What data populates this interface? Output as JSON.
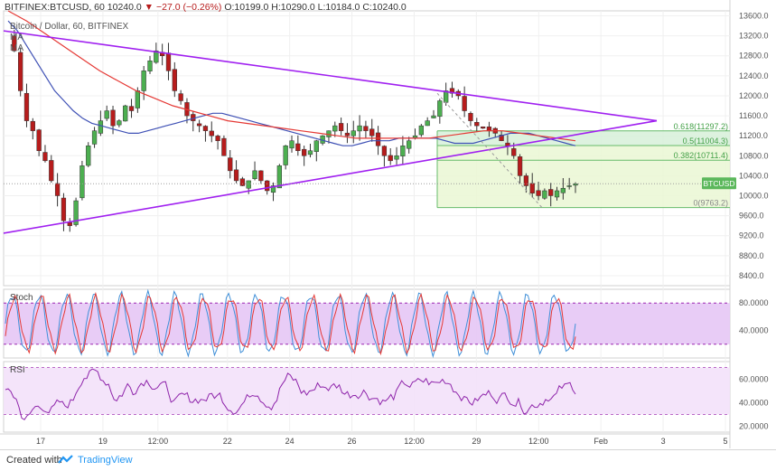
{
  "header": {
    "symbol": "BITFINEX:BTCUSD, 60",
    "last": "10240.0",
    "change": "−27.0 (−0.26%)",
    "open": "O:10199.0",
    "high": "H:10290.0",
    "low": "L:10184.0",
    "close": "C:10240.0"
  },
  "legend": {
    "title": "Bitcoin / Dollar, 60, BITFINEX",
    "ma1": "MA",
    "ma2": "MA"
  },
  "footer": {
    "created_with": "Created with",
    "brand": "TradingView"
  },
  "chart_data": {
    "type": "candlestick",
    "symbol_badge": "BTCUSD",
    "price_axis": [
      "13600.0",
      "13200.0",
      "12800.0",
      "12400.0",
      "12000.0",
      "11600.0",
      "11200.0",
      "10800.0",
      "10400.0",
      "10000.0",
      "9600.0",
      "9200.0",
      "8800.0",
      "8400.0"
    ],
    "time_axis": [
      "17",
      "19",
      "12:00",
      "22",
      "24",
      "26",
      "12:00",
      "29",
      "12:00",
      "Feb",
      "3",
      "5"
    ],
    "price_ylim": [
      8200,
      13700
    ],
    "last_price": 10240.0,
    "close_series": [
      13200,
      12900,
      12100,
      11500,
      11300,
      10900,
      10700,
      10300,
      10000,
      9500,
      9400,
      9900,
      10600,
      11000,
      11300,
      11500,
      11700,
      11400,
      11500,
      11800,
      11700,
      12100,
      12500,
      12700,
      12900,
      12800,
      12500,
      12100,
      11900,
      11600,
      11500,
      11400,
      11300,
      11200,
      11100,
      10800,
      10500,
      10300,
      10200,
      10300,
      10500,
      10300,
      10100,
      10200,
      10600,
      11000,
      11100,
      10900,
      10800,
      10900,
      11100,
      11200,
      11300,
      11400,
      11300,
      11200,
      11300,
      11400,
      11300,
      11200,
      11000,
      10800,
      10700,
      10800,
      11000,
      11100,
      11200,
      11400,
      11500,
      11600,
      11900,
      12100,
      12050,
      12000,
      11700,
      11500,
      11400,
      11350,
      11300,
      11250,
      11100,
      11000,
      10800,
      10400,
      10200,
      10050,
      10000,
      10100,
      10000,
      10100,
      10150,
      10200,
      10240
    ],
    "ma_fast": [
      13500,
      13300,
      13000,
      12700,
      12400,
      12100,
      11900,
      11700,
      11550,
      11450,
      11400,
      11350,
      11300,
      11250,
      11250,
      11300,
      11350,
      11400,
      11450,
      11500,
      11550,
      11600,
      11650,
      11650,
      11600,
      11550,
      11500,
      11450,
      11400,
      11350,
      11300,
      11250,
      11200,
      11150,
      11100,
      11050,
      11000,
      11000,
      11050,
      11100,
      11100,
      11100,
      11150,
      11150,
      11150,
      11150,
      11150,
      11100,
      11050,
      11050,
      11050,
      11100,
      11150,
      11200,
      11250,
      11250,
      11250,
      11200,
      11150,
      11100,
      11050,
      11000
    ],
    "ma_slow": [
      13700,
      13500,
      13250,
      13000,
      12750,
      12500,
      12300,
      12100,
      11950,
      11800,
      11700,
      11600,
      11500,
      11450,
      11400,
      11350,
      11300,
      11250,
      11200,
      11150,
      11150,
      11150,
      11150,
      11150,
      11200,
      11250,
      11300,
      11300,
      11250,
      11200,
      11150,
      11100
    ],
    "trendlines": [
      {
        "name": "upper",
        "from": [
          0,
          13300
        ],
        "to": [
          1.0,
          11500
        ]
      },
      {
        "name": "lower",
        "from": [
          0,
          9250
        ],
        "to": [
          1.0,
          11500
        ]
      }
    ],
    "fibonacci": [
      {
        "level": "0.618",
        "value": 11297.2,
        "label": "0.618(11297.2)"
      },
      {
        "level": "0.5",
        "value": 11004.3,
        "label": "0.5(11004.3)"
      },
      {
        "level": "0.382",
        "value": 10711.4,
        "label": "0.382(10711.4)"
      },
      {
        "level": "0",
        "value": 9763.2,
        "label": "0(9763.2)"
      }
    ],
    "stoch": {
      "label": "Stoch",
      "axis": [
        "80.0000",
        "40.0000"
      ],
      "ylim": [
        0,
        100
      ]
    },
    "rsi": {
      "label": "RSI",
      "axis": [
        "60.0000",
        "40.0000",
        "20.0000"
      ],
      "ylim": [
        15,
        75
      ]
    },
    "colors": {
      "up": "#4caf50",
      "down": "#b71c1c",
      "trendline": "#a020f0",
      "ma_fast": "#3f51b5",
      "ma_slow": "#e53935",
      "fib_fill": "#c8e6c9",
      "fib_line": "#66bb6a",
      "stoch_k": "#3f8fd8",
      "stoch_d": "#e53935",
      "stoch_band": "#e6c6f5",
      "rsi_line": "#8e24aa",
      "rsi_band": "#f3e1fa"
    }
  }
}
